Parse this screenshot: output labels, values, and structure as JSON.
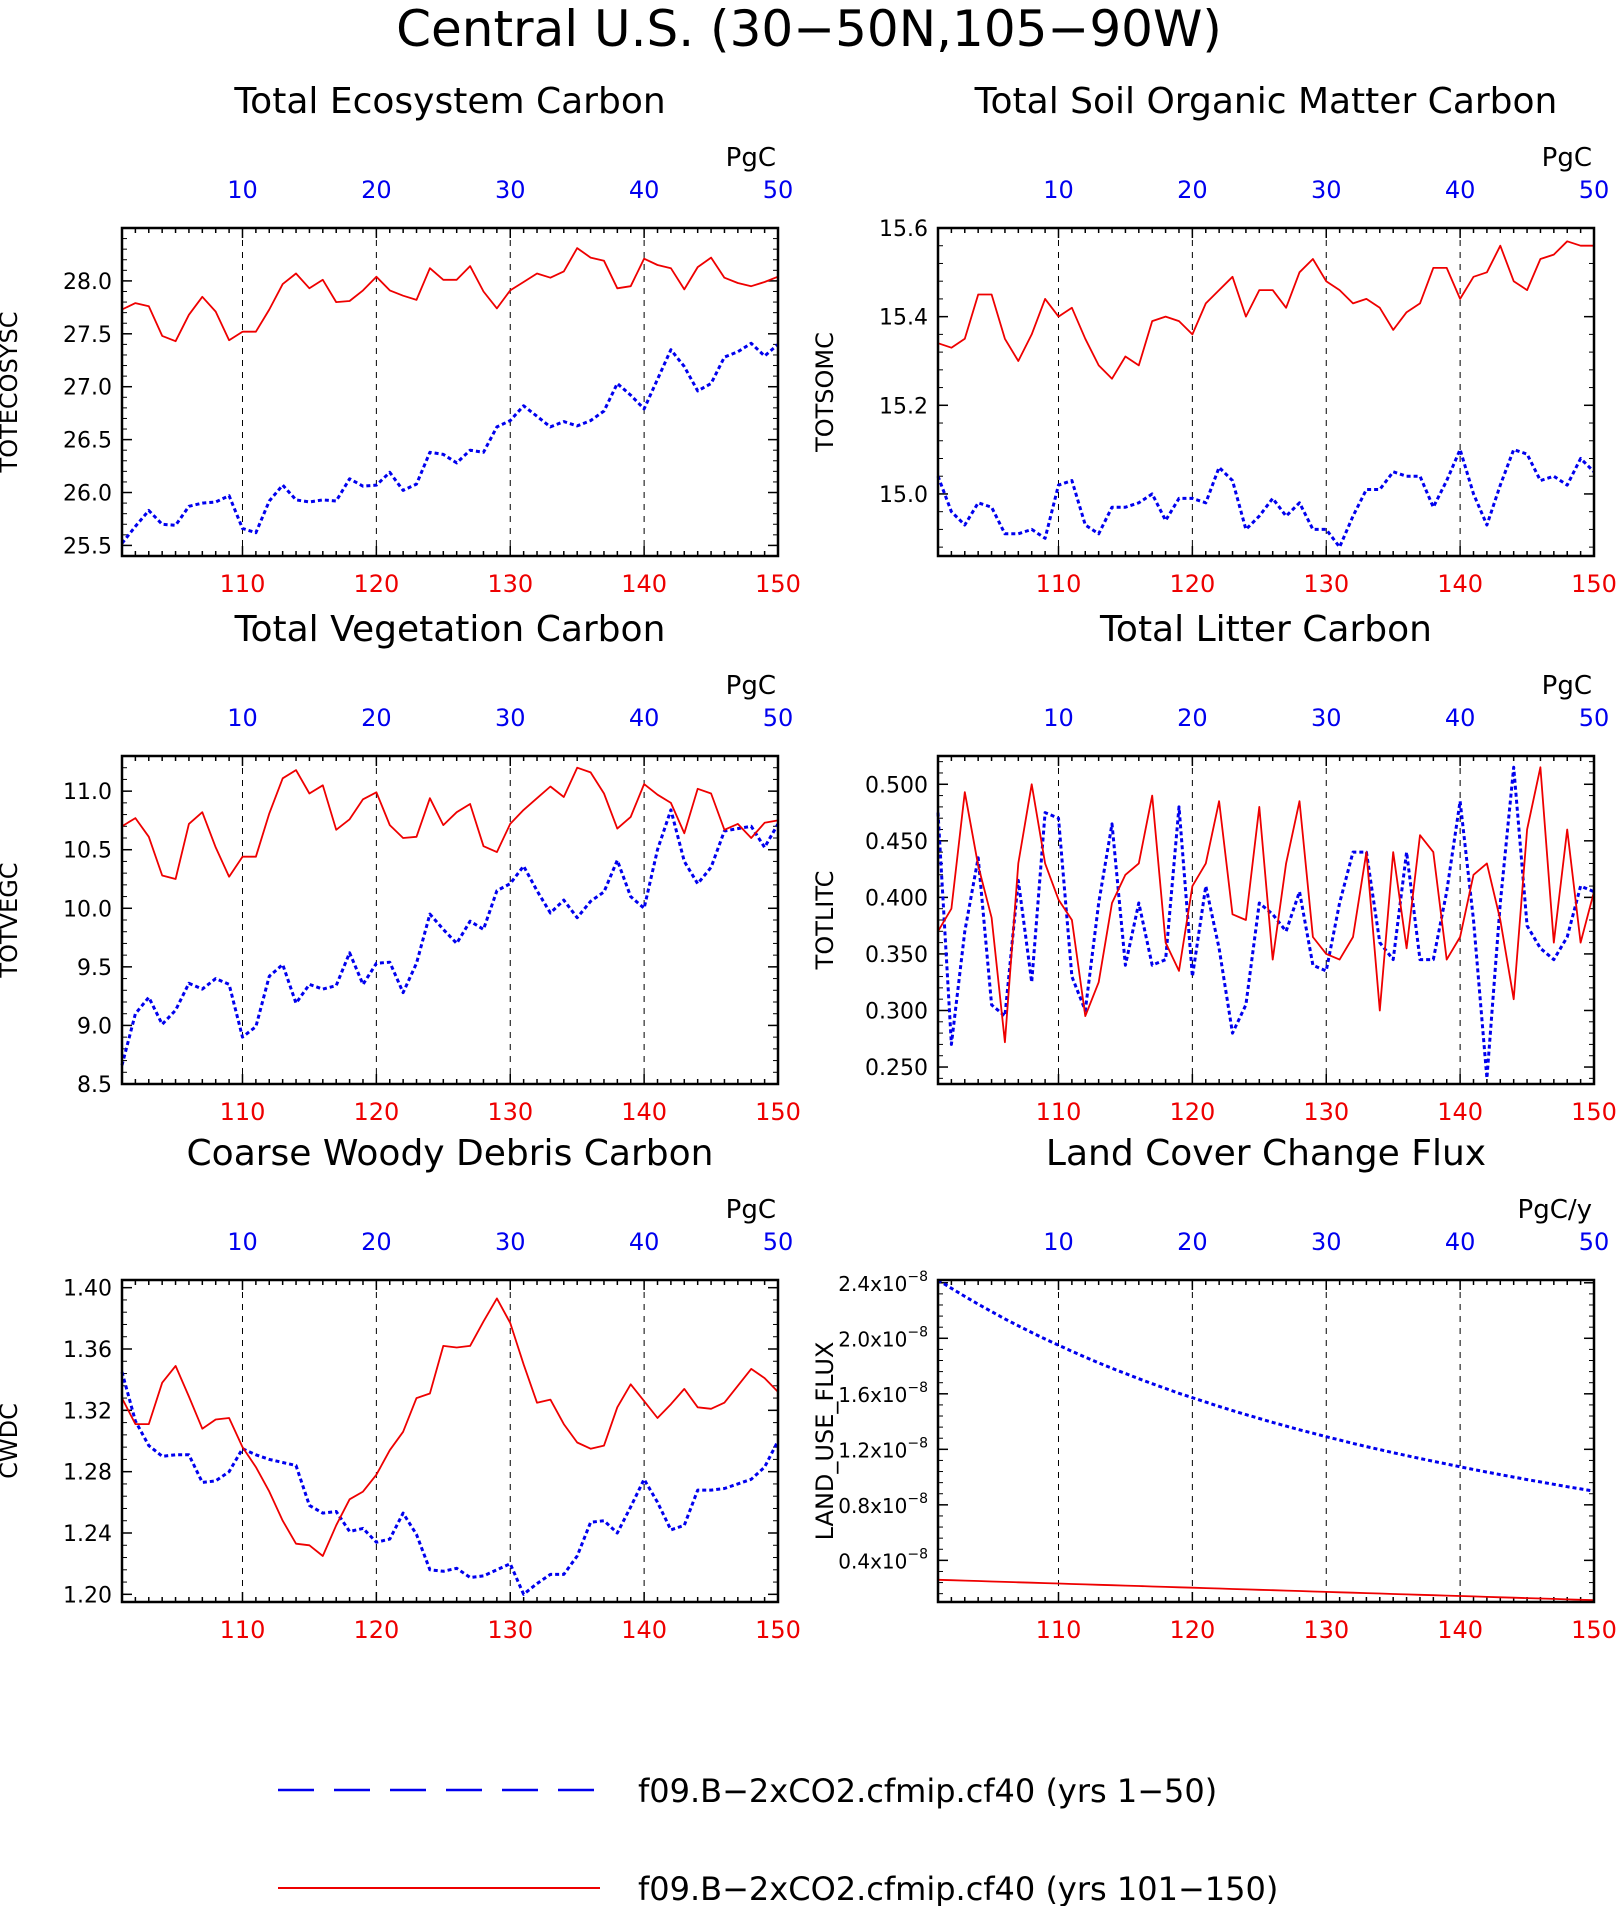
{
  "page_title": "Central U.S. (30−50N,105−90W)",
  "colors": {
    "series_a": "#0000ee",
    "series_b": "#ee0000",
    "axis": "#000000"
  },
  "legend": [
    {
      "label": "f09.B−2xCO2.cfmip.cf40 (yrs 1−50)",
      "style": "dashed",
      "color": "#0000ee"
    },
    {
      "label": "f09.B−2xCO2.cfmip.cf40 (yrs 101−150)",
      "style": "solid",
      "color": "#ee0000"
    }
  ],
  "chart_data": [
    {
      "type": "line",
      "title": "Total Ecosystem Carbon",
      "units": "PgC",
      "ylabel": "TOTECOSYSC",
      "ylim": [
        25.4,
        28.5
      ],
      "yticks": [
        "25.5",
        "26.0",
        "26.5",
        "27.0",
        "27.5",
        "28.0"
      ],
      "x_bottom": [
        101,
        150
      ],
      "x_bottom_ticks": [
        "110",
        "120",
        "130",
        "140",
        "150"
      ],
      "x_top": [
        1,
        50
      ],
      "x_top_ticks": [
        "10",
        "20",
        "30",
        "40",
        "50"
      ],
      "series": [
        {
          "name": "f09.B−2xCO2.cfmip.cf40 (yrs 1−50)",
          "axis": "top",
          "style": "dashed",
          "values": [
            25.52,
            25.68,
            25.83,
            25.7,
            25.69,
            25.87,
            25.9,
            25.91,
            25.97,
            25.66,
            25.62,
            25.92,
            26.07,
            25.93,
            25.91,
            25.93,
            25.92,
            26.13,
            26.06,
            26.07,
            26.19,
            26.02,
            26.08,
            26.38,
            26.36,
            26.28,
            26.4,
            26.38,
            26.62,
            26.68,
            26.82,
            26.72,
            26.62,
            26.67,
            26.63,
            26.68,
            26.77,
            27.03,
            26.92,
            26.79,
            27.07,
            27.35,
            27.19,
            26.96,
            27.03,
            27.28,
            27.33,
            27.41,
            27.29,
            27.4
          ]
        },
        {
          "name": "f09.B−2xCO2.cfmip.cf40 (yrs 101−150)",
          "axis": "bottom",
          "style": "solid",
          "values": [
            27.73,
            27.79,
            27.76,
            27.48,
            27.43,
            27.68,
            27.85,
            27.71,
            27.44,
            27.52,
            27.52,
            27.73,
            27.97,
            28.07,
            27.93,
            28.01,
            27.8,
            27.81,
            27.91,
            28.04,
            27.91,
            27.86,
            27.82,
            28.12,
            28.01,
            28.01,
            28.14,
            27.9,
            27.74,
            27.91,
            27.99,
            28.07,
            28.03,
            28.09,
            28.31,
            28.22,
            28.19,
            27.93,
            27.95,
            28.21,
            28.15,
            28.12,
            27.92,
            28.13,
            28.22,
            28.03,
            27.98,
            27.95,
            27.99,
            28.04
          ]
        }
      ]
    },
    {
      "type": "line",
      "title": "Total Soil Organic Matter Carbon",
      "units": "PgC",
      "ylabel": "TOTSOMC",
      "ylim": [
        14.86,
        15.6
      ],
      "yticks": [
        "15.0",
        "15.2",
        "15.4",
        "15.6"
      ],
      "x_bottom": [
        101,
        150
      ],
      "x_bottom_ticks": [
        "110",
        "120",
        "130",
        "140",
        "150"
      ],
      "x_top": [
        1,
        50
      ],
      "x_top_ticks": [
        "10",
        "20",
        "30",
        "40",
        "50"
      ],
      "series": [
        {
          "name": "f09.B−2xCO2.cfmip.cf40 (yrs 1−50)",
          "axis": "top",
          "style": "dashed",
          "values": [
            15.04,
            14.96,
            14.93,
            14.98,
            14.97,
            14.91,
            14.91,
            14.92,
            14.9,
            15.02,
            15.03,
            14.93,
            14.91,
            14.97,
            14.97,
            14.98,
            15.0,
            14.94,
            14.99,
            14.99,
            14.98,
            15.06,
            15.03,
            14.92,
            14.95,
            14.99,
            14.95,
            14.98,
            14.92,
            14.92,
            14.88,
            14.95,
            15.01,
            15.01,
            15.05,
            15.04,
            15.04,
            14.97,
            15.03,
            15.1,
            15.0,
            14.93,
            15.02,
            15.1,
            15.09,
            15.03,
            15.04,
            15.02,
            15.08,
            15.05
          ]
        },
        {
          "name": "f09.B−2xCO2.cfmip.cf40 (yrs 101−150)",
          "axis": "bottom",
          "style": "solid",
          "values": [
            15.34,
            15.33,
            15.35,
            15.45,
            15.45,
            15.35,
            15.3,
            15.36,
            15.44,
            15.4,
            15.42,
            15.35,
            15.29,
            15.26,
            15.31,
            15.29,
            15.39,
            15.4,
            15.39,
            15.36,
            15.43,
            15.46,
            15.49,
            15.4,
            15.46,
            15.46,
            15.42,
            15.5,
            15.53,
            15.48,
            15.46,
            15.43,
            15.44,
            15.42,
            15.37,
            15.41,
            15.43,
            15.51,
            15.51,
            15.44,
            15.49,
            15.5,
            15.56,
            15.48,
            15.46,
            15.53,
            15.54,
            15.57,
            15.56,
            15.56
          ]
        }
      ]
    },
    {
      "type": "line",
      "title": "Total Vegetation Carbon",
      "units": "PgC",
      "ylabel": "TOTVEGC",
      "ylim": [
        8.5,
        11.3
      ],
      "yticks": [
        "8.5",
        "9.0",
        "9.5",
        "10.0",
        "10.5",
        "11.0"
      ],
      "x_bottom": [
        101,
        150
      ],
      "x_bottom_ticks": [
        "110",
        "120",
        "130",
        "140",
        "150"
      ],
      "x_top": [
        1,
        50
      ],
      "x_top_ticks": [
        "10",
        "20",
        "30",
        "40",
        "50"
      ],
      "series": [
        {
          "name": "f09.B−2xCO2.cfmip.cf40 (yrs 1−50)",
          "axis": "top",
          "style": "dashed",
          "values": [
            8.66,
            9.1,
            9.24,
            9.01,
            9.13,
            9.36,
            9.31,
            9.4,
            9.35,
            8.9,
            8.99,
            9.42,
            9.52,
            9.19,
            9.35,
            9.31,
            9.34,
            9.62,
            9.35,
            9.53,
            9.54,
            9.28,
            9.53,
            9.95,
            9.82,
            9.7,
            9.89,
            9.82,
            10.15,
            10.21,
            10.36,
            10.15,
            9.96,
            10.07,
            9.92,
            10.06,
            10.14,
            10.41,
            10.1,
            10.0,
            10.5,
            10.84,
            10.4,
            10.21,
            10.35,
            10.66,
            10.68,
            10.7,
            10.52,
            10.72
          ]
        },
        {
          "name": "f09.B−2xCO2.cfmip.cf40 (yrs 101−150)",
          "axis": "bottom",
          "style": "solid",
          "values": [
            10.7,
            10.77,
            10.61,
            10.28,
            10.25,
            10.72,
            10.82,
            10.52,
            10.27,
            10.44,
            10.44,
            10.81,
            11.11,
            11.18,
            10.98,
            11.05,
            10.67,
            10.76,
            10.93,
            10.99,
            10.71,
            10.6,
            10.61,
            10.94,
            10.71,
            10.82,
            10.89,
            10.53,
            10.48,
            10.72,
            10.84,
            10.94,
            11.04,
            10.95,
            11.2,
            11.16,
            10.98,
            10.68,
            10.78,
            11.06,
            10.97,
            10.9,
            10.64,
            11.02,
            10.98,
            10.67,
            10.72,
            10.6,
            10.73,
            10.75
          ]
        }
      ]
    },
    {
      "type": "line",
      "title": "Total Litter Carbon",
      "units": "PgC",
      "ylabel": "TOTLITC",
      "ylim": [
        0.235,
        0.525
      ],
      "yticks": [
        "0.250",
        "0.300",
        "0.350",
        "0.400",
        "0.450",
        "0.500"
      ],
      "x_bottom": [
        101,
        150
      ],
      "x_bottom_ticks": [
        "110",
        "120",
        "130",
        "140",
        "150"
      ],
      "x_top": [
        1,
        50
      ],
      "x_top_ticks": [
        "10",
        "20",
        "30",
        "40",
        "50"
      ],
      "series": [
        {
          "name": "f09.B−2xCO2.cfmip.cf40 (yrs 1−50)",
          "axis": "top",
          "style": "dashed",
          "values": [
            0.475,
            0.27,
            0.37,
            0.435,
            0.305,
            0.295,
            0.415,
            0.325,
            0.475,
            0.47,
            0.33,
            0.3,
            0.395,
            0.465,
            0.34,
            0.395,
            0.34,
            0.345,
            0.48,
            0.33,
            0.41,
            0.355,
            0.28,
            0.305,
            0.395,
            0.385,
            0.37,
            0.405,
            0.34,
            0.335,
            0.395,
            0.44,
            0.44,
            0.36,
            0.345,
            0.44,
            0.345,
            0.345,
            0.405,
            0.485,
            0.38,
            0.24,
            0.395,
            0.515,
            0.375,
            0.355,
            0.345,
            0.365,
            0.41,
            0.405
          ]
        },
        {
          "name": "f09.B−2xCO2.cfmip.cf40 (yrs 101−150)",
          "axis": "bottom",
          "style": "solid",
          "values": [
            0.37,
            0.39,
            0.493,
            0.428,
            0.382,
            0.272,
            0.43,
            0.5,
            0.43,
            0.398,
            0.38,
            0.295,
            0.325,
            0.395,
            0.42,
            0.43,
            0.49,
            0.36,
            0.335,
            0.41,
            0.43,
            0.485,
            0.385,
            0.38,
            0.48,
            0.345,
            0.43,
            0.485,
            0.365,
            0.35,
            0.345,
            0.365,
            0.44,
            0.3,
            0.44,
            0.355,
            0.455,
            0.44,
            0.345,
            0.365,
            0.42,
            0.43,
            0.38,
            0.31,
            0.46,
            0.515,
            0.36,
            0.46,
            0.36,
            0.405
          ]
        }
      ]
    },
    {
      "type": "line",
      "title": "Coarse Woody Debris Carbon",
      "units": "PgC",
      "ylabel": "CWDC",
      "ylim": [
        1.195,
        1.405
      ],
      "yticks": [
        "1.20",
        "1.24",
        "1.28",
        "1.32",
        "1.36",
        "1.40"
      ],
      "x_bottom": [
        101,
        150
      ],
      "x_bottom_ticks": [
        "110",
        "120",
        "130",
        "140",
        "150"
      ],
      "x_top": [
        1,
        50
      ],
      "x_top_ticks": [
        "10",
        "20",
        "30",
        "40",
        "50"
      ],
      "series": [
        {
          "name": "f09.B−2xCO2.cfmip.cf40 (yrs 1−50)",
          "axis": "top",
          "style": "dashed",
          "values": [
            1.345,
            1.313,
            1.297,
            1.29,
            1.291,
            1.291,
            1.273,
            1.274,
            1.28,
            1.295,
            1.291,
            1.288,
            1.286,
            1.284,
            1.258,
            1.253,
            1.254,
            1.241,
            1.243,
            1.234,
            1.236,
            1.253,
            1.239,
            1.216,
            1.215,
            1.217,
            1.211,
            1.212,
            1.216,
            1.22,
            1.2,
            1.207,
            1.213,
            1.213,
            1.225,
            1.247,
            1.248,
            1.24,
            1.257,
            1.275,
            1.26,
            1.242,
            1.245,
            1.268,
            1.268,
            1.269,
            1.272,
            1.275,
            1.283,
            1.3
          ]
        },
        {
          "name": "f09.B−2xCO2.cfmip.cf40 (yrs 101−150)",
          "axis": "bottom",
          "style": "solid",
          "values": [
            1.328,
            1.311,
            1.311,
            1.338,
            1.349,
            1.329,
            1.308,
            1.314,
            1.315,
            1.296,
            1.283,
            1.267,
            1.248,
            1.233,
            1.232,
            1.225,
            1.245,
            1.262,
            1.267,
            1.278,
            1.294,
            1.306,
            1.328,
            1.331,
            1.362,
            1.361,
            1.362,
            1.378,
            1.393,
            1.377,
            1.35,
            1.325,
            1.327,
            1.311,
            1.299,
            1.295,
            1.297,
            1.322,
            1.337,
            1.326,
            1.315,
            1.324,
            1.334,
            1.322,
            1.321,
            1.325,
            1.336,
            1.347,
            1.341,
            1.332
          ]
        }
      ]
    },
    {
      "type": "line",
      "title": "Land Cover Change Flux",
      "units": "PgC/y",
      "ylabel": "LAND_USE_FLUX",
      "ylim": [
        1e-09,
        2.42e-08
      ],
      "yticks": [
        "0.4x10-8",
        "0.8x10-8",
        "1.2x10-8",
        "1.6x10-8",
        "2.0x10-8",
        "2.4x10-8"
      ],
      "ytick_mantissas": [
        "0.4",
        "0.8",
        "1.2",
        "1.6",
        "2.0",
        "2.4"
      ],
      "ytick_base": "x10",
      "ytick_exponent": "−8",
      "x_bottom": [
        101,
        150
      ],
      "x_bottom_ticks": [
        "110",
        "120",
        "130",
        "140",
        "150"
      ],
      "x_top": [
        1,
        50
      ],
      "x_top_ticks": [
        "10",
        "20",
        "30",
        "40",
        "50"
      ],
      "series": [
        {
          "name": "f09.B−2xCO2.cfmip.cf40 (yrs 1−50)",
          "axis": "top",
          "style": "dashed",
          "values": [
            2.42e-08,
            2.36e-08,
            2.302e-08,
            2.246e-08,
            2.192e-08,
            2.14e-08,
            2.09e-08,
            2.042e-08,
            1.995e-08,
            1.95e-08,
            1.906e-08,
            1.864e-08,
            1.823e-08,
            1.784e-08,
            1.746e-08,
            1.709e-08,
            1.673e-08,
            1.638e-08,
            1.604e-08,
            1.572e-08,
            1.54e-08,
            1.509e-08,
            1.479e-08,
            1.45e-08,
            1.422e-08,
            1.394e-08,
            1.367e-08,
            1.341e-08,
            1.316e-08,
            1.291e-08,
            1.267e-08,
            1.243e-08,
            1.22e-08,
            1.198e-08,
            1.176e-08,
            1.155e-08,
            1.134e-08,
            1.114e-08,
            1.094e-08,
            1.074e-08,
            1.055e-08,
            1.036e-08,
            1.018e-08,
            1e-08,
            9.82e-09,
            9.65e-09,
            9.48e-09,
            9.31e-09,
            9.15e-09,
            8.99e-09
          ]
        },
        {
          "name": "f09.B−2xCO2.cfmip.cf40 (yrs 101−150)",
          "axis": "bottom",
          "style": "solid",
          "values": [
            2.6e-09,
            2.57e-09,
            2.54e-09,
            2.51e-09,
            2.48e-09,
            2.45e-09,
            2.42e-09,
            2.39e-09,
            2.36e-09,
            2.33e-09,
            2.3e-09,
            2.27e-09,
            2.24e-09,
            2.21e-09,
            2.18e-09,
            2.15e-09,
            2.12e-09,
            2.09e-09,
            2.06e-09,
            2.03e-09,
            2e-09,
            1.97e-09,
            1.94e-09,
            1.91e-09,
            1.88e-09,
            1.85e-09,
            1.82e-09,
            1.79e-09,
            1.76e-09,
            1.73e-09,
            1.7e-09,
            1.67e-09,
            1.64e-09,
            1.61e-09,
            1.58e-09,
            1.55e-09,
            1.52e-09,
            1.49e-09,
            1.46e-09,
            1.43e-09,
            1.4e-09,
            1.37e-09,
            1.34e-09,
            1.31e-09,
            1.28e-09,
            1.25e-09,
            1.22e-09,
            1.19e-09,
            1.16e-09,
            1.13e-09
          ]
        }
      ]
    }
  ]
}
